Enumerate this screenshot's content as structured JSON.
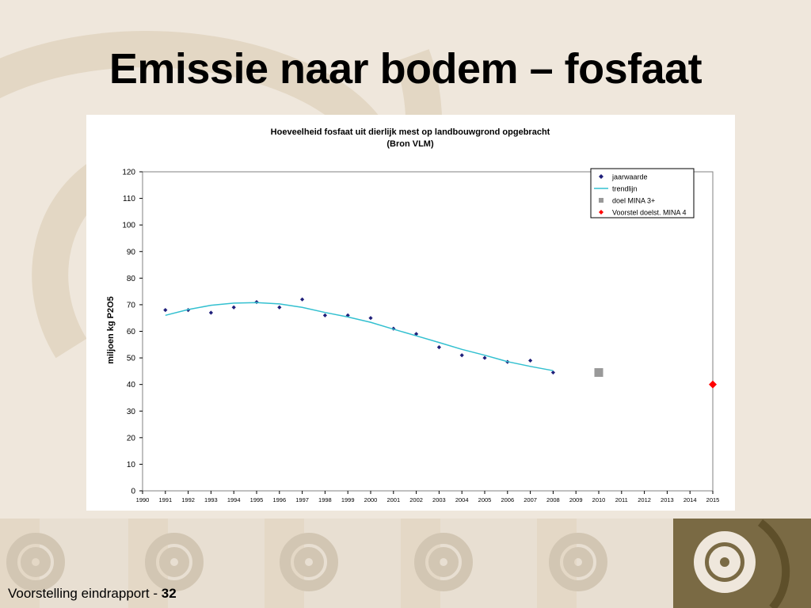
{
  "slide": {
    "title": "Emissie naar bodem – fosfaat",
    "footer_text": "Voorstelling eindrapport - ",
    "footer_page": "32"
  },
  "colors": {
    "background": "#efe7dc",
    "decor_dark": "#6f5d34",
    "jaarwaarde": "#1f1f7a",
    "trendlijn": "#33c0d0",
    "doel_mina3": "#999999",
    "voorstel_mina4": "#ff0000"
  },
  "chart_data": {
    "type": "scatter",
    "title": "Hoeveelheid fosfaat uit dierlijk mest op landbouwgrond opgebracht",
    "subtitle": "(Bron VLM)",
    "xlabel": "",
    "ylabel": "miljoen kg P2O5",
    "xlim": [
      1990,
      2015
    ],
    "ylim": [
      0,
      120
    ],
    "x_ticks": [
      "1990",
      "1991",
      "1992",
      "1993",
      "1994",
      "1995",
      "1996",
      "1997",
      "1998",
      "1999",
      "2000",
      "2001",
      "2002",
      "2003",
      "2004",
      "2005",
      "2006",
      "2007",
      "2008",
      "2009",
      "2010",
      "2011",
      "2012",
      "2013",
      "2014",
      "2015"
    ],
    "y_ticks": [
      "0",
      "10",
      "20",
      "30",
      "40",
      "50",
      "60",
      "70",
      "80",
      "90",
      "100",
      "110",
      "120"
    ],
    "grid": false,
    "legend_position": "top-right",
    "series": [
      {
        "name": "jaarwaarde",
        "kind": "points",
        "marker": "diamond",
        "color": "#1f1f7a",
        "x": [
          1991,
          1992,
          1993,
          1994,
          1995,
          1996,
          1997,
          1998,
          1999,
          2000,
          2001,
          2002,
          2003,
          2004,
          2005,
          2006,
          2007,
          2008
        ],
        "y": [
          68,
          68,
          67,
          69,
          71,
          69,
          72,
          66,
          66,
          65,
          61,
          59,
          54,
          51,
          50,
          48.5,
          49,
          44.5
        ]
      },
      {
        "name": "trendlijn",
        "kind": "line",
        "color": "#33c0d0",
        "x": [
          1991,
          1992,
          1993,
          1994,
          1995,
          1996,
          1997,
          1998,
          1999,
          2000,
          2001,
          2002,
          2003,
          2004,
          2005,
          2006,
          2007,
          2008
        ],
        "y": [
          66,
          68.2,
          69.8,
          70.6,
          70.8,
          70.3,
          69,
          67.1,
          65.4,
          63.4,
          60.8,
          58.3,
          55.8,
          53.2,
          51,
          48.6,
          46.8,
          45.2
        ]
      },
      {
        "name": "doel MINA 3+",
        "kind": "points",
        "marker": "square",
        "color": "#999999",
        "x": [
          2010
        ],
        "y": [
          44.5
        ]
      },
      {
        "name": "Voorstel doelst. MINA 4",
        "kind": "points",
        "marker": "diamond-large",
        "color": "#ff0000",
        "x": [
          2015
        ],
        "y": [
          40
        ]
      }
    ]
  }
}
